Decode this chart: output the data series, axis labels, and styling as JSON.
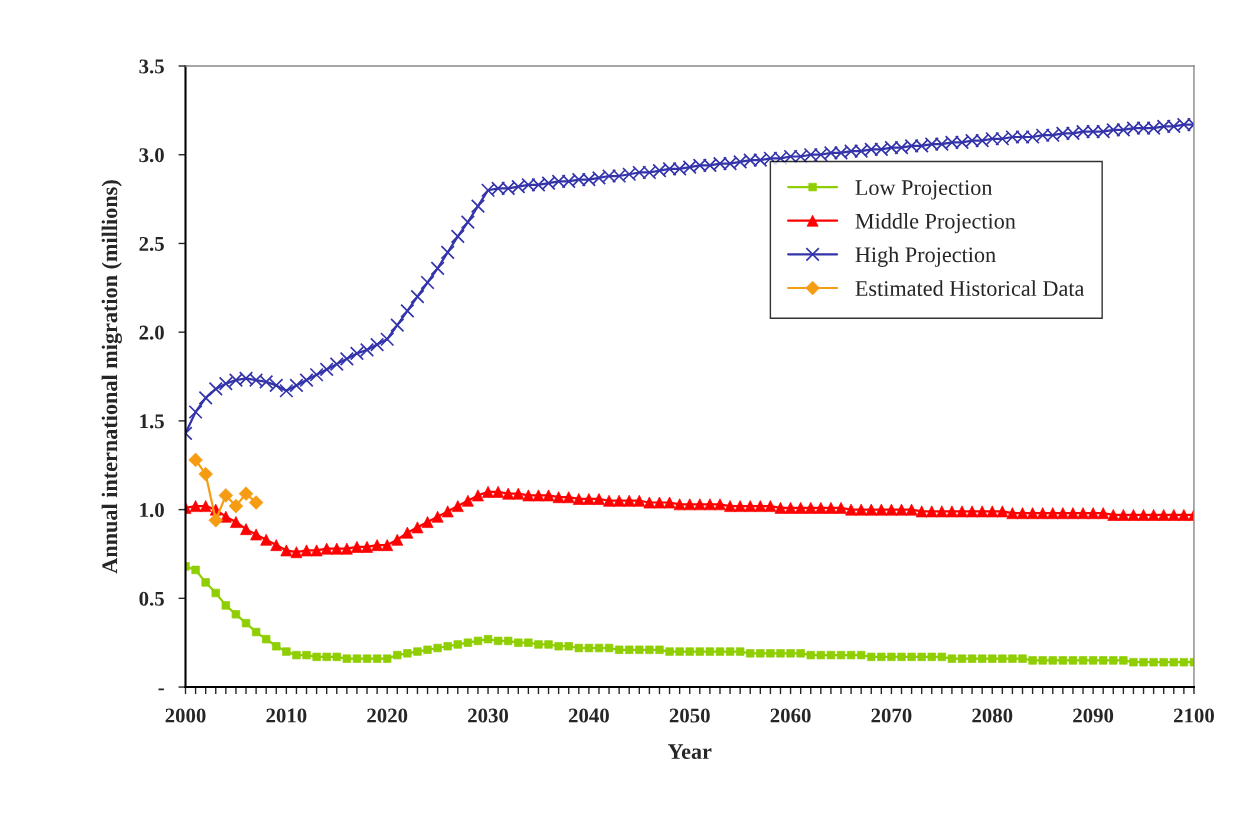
{
  "chart_data": {
    "type": "line",
    "xlabel": "Year",
    "ylabel": "Annual international migration (millions)",
    "x": [
      2000,
      2001,
      2002,
      2003,
      2004,
      2005,
      2006,
      2007,
      2008,
      2009,
      2010,
      2011,
      2012,
      2013,
      2014,
      2015,
      2016,
      2017,
      2018,
      2019,
      2020,
      2021,
      2022,
      2023,
      2024,
      2025,
      2026,
      2027,
      2028,
      2029,
      2030,
      2031,
      2032,
      2033,
      2034,
      2035,
      2036,
      2037,
      2038,
      2039,
      2040,
      2041,
      2042,
      2043,
      2044,
      2045,
      2046,
      2047,
      2048,
      2049,
      2050,
      2051,
      2052,
      2053,
      2054,
      2055,
      2056,
      2057,
      2058,
      2059,
      2060,
      2061,
      2062,
      2063,
      2064,
      2065,
      2066,
      2067,
      2068,
      2069,
      2070,
      2071,
      2072,
      2073,
      2074,
      2075,
      2076,
      2077,
      2078,
      2079,
      2080,
      2081,
      2082,
      2083,
      2084,
      2085,
      2086,
      2087,
      2088,
      2089,
      2090,
      2091,
      2092,
      2093,
      2094,
      2095,
      2096,
      2097,
      2098,
      2099,
      2100
    ],
    "series": [
      {
        "name": "Low Projection",
        "color": "#8fce00",
        "marker": "square",
        "values": [
          0.68,
          0.66,
          0.59,
          0.53,
          0.46,
          0.41,
          0.36,
          0.31,
          0.27,
          0.23,
          0.2,
          0.18,
          0.18,
          0.17,
          0.17,
          0.17,
          0.16,
          0.16,
          0.16,
          0.16,
          0.16,
          0.18,
          0.19,
          0.2,
          0.21,
          0.22,
          0.23,
          0.24,
          0.25,
          0.26,
          0.27,
          0.26,
          0.26,
          0.25,
          0.25,
          0.24,
          0.24,
          0.23,
          0.23,
          0.22,
          0.22,
          0.22,
          0.22,
          0.21,
          0.21,
          0.21,
          0.21,
          0.21,
          0.2,
          0.2,
          0.2,
          0.2,
          0.2,
          0.2,
          0.2,
          0.2,
          0.19,
          0.19,
          0.19,
          0.19,
          0.19,
          0.19,
          0.18,
          0.18,
          0.18,
          0.18,
          0.18,
          0.18,
          0.17,
          0.17,
          0.17,
          0.17,
          0.17,
          0.17,
          0.17,
          0.17,
          0.16,
          0.16,
          0.16,
          0.16,
          0.16,
          0.16,
          0.16,
          0.16,
          0.15,
          0.15,
          0.15,
          0.15,
          0.15,
          0.15,
          0.15,
          0.15,
          0.15,
          0.15,
          0.14,
          0.14,
          0.14,
          0.14,
          0.14,
          0.14,
          0.14
        ]
      },
      {
        "name": "Middle Projection",
        "color": "#ff0000",
        "marker": "triangle",
        "values": [
          1.01,
          1.02,
          1.02,
          1.0,
          0.96,
          0.93,
          0.89,
          0.86,
          0.83,
          0.8,
          0.77,
          0.76,
          0.77,
          0.77,
          0.78,
          0.78,
          0.78,
          0.79,
          0.79,
          0.8,
          0.8,
          0.83,
          0.87,
          0.9,
          0.93,
          0.96,
          0.99,
          1.02,
          1.05,
          1.08,
          1.1,
          1.1,
          1.09,
          1.09,
          1.08,
          1.08,
          1.08,
          1.07,
          1.07,
          1.06,
          1.06,
          1.06,
          1.05,
          1.05,
          1.05,
          1.05,
          1.04,
          1.04,
          1.04,
          1.03,
          1.03,
          1.03,
          1.03,
          1.03,
          1.02,
          1.02,
          1.02,
          1.02,
          1.02,
          1.01,
          1.01,
          1.01,
          1.01,
          1.01,
          1.01,
          1.01,
          1.0,
          1.0,
          1.0,
          1.0,
          1.0,
          1.0,
          1.0,
          0.99,
          0.99,
          0.99,
          0.99,
          0.99,
          0.99,
          0.99,
          0.99,
          0.99,
          0.98,
          0.98,
          0.98,
          0.98,
          0.98,
          0.98,
          0.98,
          0.98,
          0.98,
          0.98,
          0.97,
          0.97,
          0.97,
          0.97,
          0.97,
          0.97,
          0.97,
          0.97,
          0.97
        ]
      },
      {
        "name": "High Projection",
        "color": "#3333aa",
        "marker": "cross",
        "values": [
          1.43,
          1.55,
          1.63,
          1.68,
          1.71,
          1.73,
          1.74,
          1.73,
          1.72,
          1.7,
          1.67,
          1.7,
          1.73,
          1.76,
          1.79,
          1.82,
          1.85,
          1.88,
          1.9,
          1.93,
          1.96,
          2.04,
          2.12,
          2.2,
          2.28,
          2.36,
          2.45,
          2.54,
          2.62,
          2.71,
          2.8,
          2.81,
          2.81,
          2.82,
          2.83,
          2.83,
          2.84,
          2.85,
          2.85,
          2.86,
          2.86,
          2.87,
          2.88,
          2.88,
          2.89,
          2.9,
          2.9,
          2.91,
          2.92,
          2.92,
          2.93,
          2.94,
          2.94,
          2.95,
          2.95,
          2.96,
          2.97,
          2.97,
          2.98,
          2.98,
          2.99,
          2.99,
          3.0,
          3.0,
          3.01,
          3.01,
          3.02,
          3.02,
          3.03,
          3.03,
          3.04,
          3.04,
          3.05,
          3.05,
          3.06,
          3.06,
          3.07,
          3.07,
          3.08,
          3.08,
          3.09,
          3.09,
          3.1,
          3.1,
          3.1,
          3.11,
          3.11,
          3.12,
          3.12,
          3.13,
          3.13,
          3.13,
          3.14,
          3.14,
          3.15,
          3.15,
          3.15,
          3.16,
          3.16,
          3.17,
          3.17
        ]
      },
      {
        "name": "Estimated Historical Data",
        "color": "#f59c12",
        "marker": "diamond",
        "x": [
          2001,
          2002,
          2003,
          2004,
          2005,
          2006,
          2007
        ],
        "values": [
          1.28,
          1.2,
          0.94,
          1.08,
          1.02,
          1.09,
          1.04
        ]
      }
    ],
    "xlim": [
      2000,
      2100
    ],
    "xticks": [
      2000,
      {
        "value": 2001,
        "label": null
      },
      {
        "value": 2002,
        "label": null
      },
      {
        "value": 2003,
        "label": null
      },
      {
        "value": 2004,
        "label": null
      },
      {
        "value": 2005,
        "label": null
      },
      {
        "value": 2006,
        "label": null
      },
      {
        "value": 2007,
        "label": null
      },
      {
        "value": 2008,
        "label": null
      },
      {
        "value": 2009,
        "label": null
      },
      2010,
      {
        "value": 2011,
        "label": null
      },
      {
        "value": 2012,
        "label": null
      },
      {
        "value": 2013,
        "label": null
      },
      {
        "value": 2014,
        "label": null
      },
      {
        "value": 2015,
        "label": null
      },
      {
        "value": 2016,
        "label": null
      },
      {
        "value": 2017,
        "label": null
      },
      {
        "value": 2018,
        "label": null
      },
      {
        "value": 2019,
        "label": null
      },
      2020,
      {
        "value": 2021,
        "label": null
      },
      {
        "value": 2022,
        "label": null
      },
      {
        "value": 2023,
        "label": null
      },
      {
        "value": 2024,
        "label": null
      },
      {
        "value": 2025,
        "label": null
      },
      {
        "value": 2026,
        "label": null
      },
      {
        "value": 2027,
        "label": null
      },
      {
        "value": 2028,
        "label": null
      },
      {
        "value": 2029,
        "label": null
      },
      2030,
      {
        "value": 2031,
        "label": null
      },
      {
        "value": 2032,
        "label": null
      },
      {
        "value": 2033,
        "label": null
      },
      {
        "value": 2034,
        "label": null
      },
      {
        "value": 2035,
        "label": null
      },
      {
        "value": 2036,
        "label": null
      },
      {
        "value": 2037,
        "label": null
      },
      {
        "value": 2038,
        "label": null
      },
      {
        "value": 2039,
        "label": null
      },
      2040,
      {
        "value": 2041,
        "label": null
      },
      {
        "value": 2042,
        "label": null
      },
      {
        "value": 2043,
        "label": null
      },
      {
        "value": 2044,
        "label": null
      },
      {
        "value": 2045,
        "label": null
      },
      {
        "value": 2046,
        "label": null
      },
      {
        "value": 2047,
        "label": null
      },
      {
        "value": 2048,
        "label": null
      },
      {
        "value": 2049,
        "label": null
      },
      2050,
      {
        "value": 2051,
        "label": null
      },
      {
        "value": 2052,
        "label": null
      },
      {
        "value": 2053,
        "label": null
      },
      {
        "value": 2054,
        "label": null
      },
      {
        "value": 2055,
        "label": null
      },
      {
        "value": 2056,
        "label": null
      },
      {
        "value": 2057,
        "label": null
      },
      {
        "value": 2058,
        "label": null
      },
      {
        "value": 2059,
        "label": null
      },
      2060,
      {
        "value": 2061,
        "label": null
      },
      {
        "value": 2062,
        "label": null
      },
      {
        "value": 2063,
        "label": null
      },
      {
        "value": 2064,
        "label": null
      },
      {
        "value": 2065,
        "label": null
      },
      {
        "value": 2066,
        "label": null
      },
      {
        "value": 2067,
        "label": null
      },
      {
        "value": 2068,
        "label": null
      },
      {
        "value": 2069,
        "label": null
      },
      2070,
      {
        "value": 2071,
        "label": null
      },
      {
        "value": 2072,
        "label": null
      },
      {
        "value": 2073,
        "label": null
      },
      {
        "value": 2074,
        "label": null
      },
      {
        "value": 2075,
        "label": null
      },
      {
        "value": 2076,
        "label": null
      },
      {
        "value": 2077,
        "label": null
      },
      {
        "value": 2078,
        "label": null
      },
      {
        "value": 2079,
        "label": null
      },
      2080,
      {
        "value": 2081,
        "label": null
      },
      {
        "value": 2082,
        "label": null
      },
      {
        "value": 2083,
        "label": null
      },
      {
        "value": 2084,
        "label": null
      },
      {
        "value": 2085,
        "label": null
      },
      {
        "value": 2086,
        "label": null
      },
      {
        "value": 2087,
        "label": null
      },
      {
        "value": 2088,
        "label": null
      },
      {
        "value": 2089,
        "label": null
      },
      2090,
      {
        "value": 2091,
        "label": null
      },
      {
        "value": 2092,
        "label": null
      },
      {
        "value": 2093,
        "label": null
      },
      {
        "value": 2094,
        "label": null
      },
      {
        "value": 2095,
        "label": null
      },
      {
        "value": 2096,
        "label": null
      },
      {
        "value": 2097,
        "label": null
      },
      {
        "value": 2098,
        "label": null
      },
      {
        "value": 2099,
        "label": null
      },
      2100
    ],
    "ylim": [
      0,
      3.5
    ],
    "yticks": [
      {
        "value": 0,
        "label": "-"
      },
      {
        "value": 0.5,
        "label": "0.5"
      },
      {
        "value": 1,
        "label": "1.0"
      },
      {
        "value": 1.5,
        "label": "1.5"
      },
      {
        "value": 2,
        "label": "2.0"
      },
      {
        "value": 2.5,
        "label": "2.5"
      },
      {
        "value": 3,
        "label": "3.0"
      },
      {
        "value": 3.5,
        "label": "3.5"
      }
    ],
    "grid": false,
    "legend": "right",
    "line_style": "solid"
  }
}
